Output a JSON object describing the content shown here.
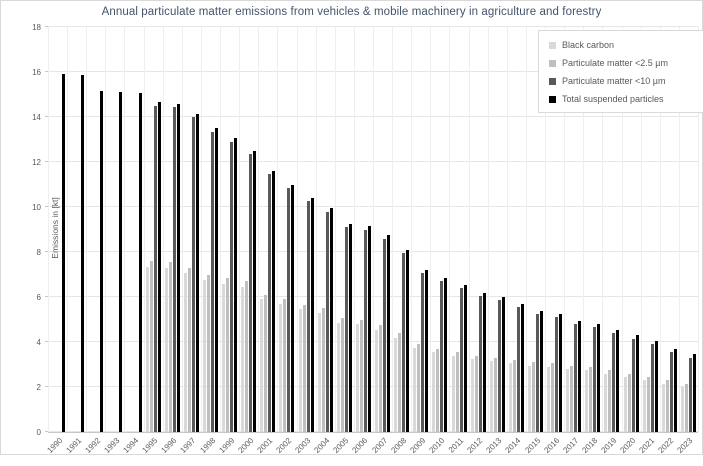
{
  "title": "Annual particulate matter emissions from vehicles & mobile machinery in agriculture and forestry",
  "y_axis": {
    "title": "Emissions in [kt]",
    "ticks": [
      0,
      2,
      4,
      6,
      8,
      10,
      12,
      14,
      16,
      18
    ],
    "min": 0,
    "max": 18
  },
  "legend": {
    "position": "top-right",
    "items": [
      {
        "label": "Black carbon",
        "color": "#d9d9d9"
      },
      {
        "label": "Particulate matter <2.5 µm",
        "color": "#bfbfbf"
      },
      {
        "label": "Particulate matter <10 µm",
        "color": "#595959"
      },
      {
        "label": "Total suspended particles",
        "color": "#000000"
      }
    ]
  },
  "chart_data": {
    "type": "bar",
    "title": "Annual particulate matter emissions from vehicles & mobile machinery in agriculture and forestry",
    "xlabel": "",
    "ylabel": "Emissions in [kt]",
    "ylim": [
      0,
      18
    ],
    "grid": true,
    "legend_position": "top-right",
    "categories": [
      1990,
      1991,
      1992,
      1993,
      1994,
      1995,
      1996,
      1997,
      1998,
      1999,
      2000,
      2001,
      2002,
      2003,
      2004,
      2005,
      2006,
      2007,
      2008,
      2009,
      2010,
      2011,
      2012,
      2013,
      2014,
      2015,
      2016,
      2017,
      2018,
      2019,
      2020,
      2021,
      2022,
      2023
    ],
    "series": [
      {
        "name": "Black carbon",
        "color": "#d9d9d9",
        "values": [
          null,
          null,
          null,
          null,
          null,
          7.35,
          7.3,
          7.05,
          6.75,
          6.6,
          6.45,
          5.9,
          5.7,
          5.45,
          5.3,
          4.85,
          4.8,
          4.55,
          4.2,
          3.75,
          3.55,
          3.4,
          3.25,
          3.15,
          3.05,
          2.95,
          2.9,
          2.8,
          2.75,
          2.6,
          2.45,
          2.3,
          2.15,
          2.0
        ]
      },
      {
        "name": "Particulate matter <2.5 µm",
        "color": "#bfbfbf",
        "values": [
          null,
          null,
          null,
          null,
          null,
          7.6,
          7.55,
          7.3,
          7.0,
          6.85,
          6.7,
          6.1,
          5.9,
          5.65,
          5.5,
          5.05,
          5.0,
          4.75,
          4.4,
          3.9,
          3.7,
          3.55,
          3.4,
          3.3,
          3.2,
          3.1,
          3.05,
          2.95,
          2.9,
          2.75,
          2.6,
          2.45,
          2.3,
          2.15
        ]
      },
      {
        "name": "Particulate matter <10 µm",
        "color": "#595959",
        "values": [
          null,
          null,
          null,
          null,
          null,
          14.5,
          14.45,
          14.0,
          13.35,
          12.9,
          12.35,
          11.45,
          10.85,
          10.25,
          9.8,
          9.1,
          9.0,
          8.6,
          7.95,
          7.05,
          6.7,
          6.4,
          6.05,
          5.85,
          5.55,
          5.25,
          5.1,
          4.8,
          4.65,
          4.4,
          4.15,
          3.9,
          3.55,
          3.3
        ]
      },
      {
        "name": "Total suspended particles",
        "color": "#000000",
        "values": [
          15.9,
          15.85,
          15.15,
          15.1,
          15.05,
          14.65,
          14.6,
          14.15,
          13.5,
          13.05,
          12.5,
          11.6,
          11.0,
          10.4,
          9.95,
          9.25,
          9.15,
          8.75,
          8.1,
          7.2,
          6.85,
          6.55,
          6.2,
          6.0,
          5.7,
          5.4,
          5.25,
          4.95,
          4.8,
          4.55,
          4.3,
          4.05,
          3.7,
          3.45
        ]
      }
    ]
  }
}
